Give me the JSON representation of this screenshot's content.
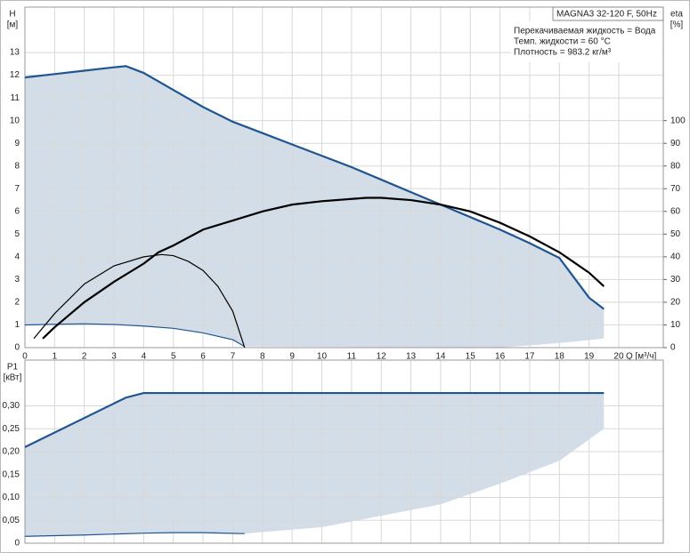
{
  "chart_data": [
    {
      "type": "line",
      "ylabel": "H",
      "yunit": "[м]",
      "y2label": "eta",
      "y2unit": "[%]",
      "xlabel": "Q [м³/ч]",
      "info_title": "MAGNA3 32-120 F, 50Hz",
      "info_lines": [
        "Перекачиваемая жидкость = Вода",
        "Темп. жидкости = 60 °C",
        "Плотность = 983.2 кг/м³"
      ],
      "xlim": [
        0,
        21.5
      ],
      "xticks": [
        0,
        1,
        2,
        3,
        4,
        5,
        6,
        7,
        8,
        9,
        10,
        11,
        12,
        13,
        14,
        15,
        16,
        17,
        18,
        19,
        20
      ],
      "ylim": [
        0,
        15
      ],
      "yticks": [
        0,
        1,
        2,
        3,
        4,
        5,
        6,
        7,
        8,
        9,
        10,
        11,
        12,
        13
      ],
      "y2lim": [
        0,
        150
      ],
      "y2ticks": [
        0,
        10,
        20,
        30,
        40,
        50,
        60,
        70,
        80,
        90,
        100
      ],
      "grid": true,
      "show_xtick_labels": true,
      "areas": [
        {
          "color": "#d3dde8",
          "x": [
            0,
            1,
            2,
            3,
            3.4,
            4,
            5,
            6,
            7,
            8,
            9,
            10,
            11,
            12,
            13,
            14,
            15,
            16,
            17,
            18,
            19,
            19.5,
            19.5,
            18,
            16,
            7.4,
            7,
            6,
            5,
            4,
            2,
            0
          ],
          "values": [
            11.9,
            12.05,
            12.2,
            12.35,
            12.4,
            12.1,
            11.35,
            10.6,
            9.95,
            9.45,
            8.95,
            8.45,
            7.95,
            7.4,
            6.85,
            6.3,
            5.75,
            5.2,
            4.6,
            3.95,
            2.2,
            1.7,
            0.4,
            0.2,
            0,
            0.05,
            0.35,
            0.65,
            0.85,
            0.95,
            1.05,
            1.0
          ]
        }
      ],
      "series": [
        {
          "color": "#1f5591",
          "weight": "heavy",
          "axis": "y",
          "x": [
            0,
            1,
            2,
            3,
            3.4,
            4,
            5,
            6,
            7,
            8,
            9,
            10,
            11,
            12,
            13,
            14,
            15,
            16,
            17,
            18,
            19,
            19.5
          ],
          "values": [
            11.9,
            12.05,
            12.2,
            12.35,
            12.4,
            12.1,
            11.35,
            10.6,
            9.95,
            9.45,
            8.95,
            8.45,
            7.95,
            7.4,
            6.85,
            6.3,
            5.75,
            5.2,
            4.6,
            3.95,
            2.2,
            1.7
          ]
        },
        {
          "color": "#1f5591",
          "weight": "light",
          "axis": "y",
          "x": [
            0,
            1,
            2,
            3,
            4,
            5,
            6,
            7,
            7.4
          ],
          "values": [
            1.0,
            1.03,
            1.05,
            1.02,
            0.95,
            0.85,
            0.65,
            0.35,
            0.05
          ]
        },
        {
          "color": "#000000",
          "weight": "heavy",
          "axis": "y2",
          "x": [
            0.6,
            1,
            2,
            3,
            4,
            4.5,
            5,
            6,
            7,
            8,
            9,
            10,
            11,
            11.5,
            12,
            13,
            14,
            15,
            16,
            17,
            18,
            19,
            19.5
          ],
          "values": [
            4,
            9,
            20,
            29,
            37,
            42,
            45,
            52,
            56,
            60,
            63,
            64.5,
            65.5,
            66,
            66,
            65,
            63,
            60,
            55,
            49,
            42,
            33,
            27
          ]
        },
        {
          "color": "#000000",
          "weight": "light",
          "axis": "y2",
          "x": [
            0.3,
            1,
            2,
            3,
            4,
            4.6,
            5,
            5.5,
            6,
            6.5,
            7,
            7.4
          ],
          "values": [
            4,
            15,
            28,
            36,
            40,
            41,
            40.5,
            38,
            34,
            27,
            16,
            0
          ]
        }
      ]
    },
    {
      "type": "line",
      "ylabel": "P1",
      "yunit": "[кВт]",
      "xlim": [
        0,
        21.5
      ],
      "xticks": [
        0,
        1,
        2,
        3,
        4,
        5,
        6,
        7,
        8,
        9,
        10,
        11,
        12,
        13,
        14,
        15,
        16,
        17,
        18,
        19,
        20
      ],
      "ylim": [
        0,
        0.4
      ],
      "yticks": [
        0,
        {
          "value": 0.05,
          "label": "0,05"
        },
        {
          "value": 0.1,
          "label": "0,10"
        },
        {
          "value": 0.15,
          "label": "0,15"
        },
        {
          "value": 0.2,
          "label": "0,20"
        },
        {
          "value": 0.25,
          "label": "0,25"
        },
        {
          "value": 0.3,
          "label": "0,30"
        }
      ],
      "grid": true,
      "show_xtick_labels": false,
      "areas": [
        {
          "color": "#d3dde8",
          "x": [
            0,
            3.4,
            4,
            19.5,
            19.5,
            18,
            16,
            14,
            12,
            10,
            7.4,
            6,
            5,
            4,
            2,
            0
          ],
          "values": [
            0.21,
            0.318,
            0.328,
            0.328,
            0.25,
            0.18,
            0.13,
            0.085,
            0.06,
            0.035,
            0.021,
            0.023,
            0.023,
            0.022,
            0.018,
            0.015
          ]
        }
      ],
      "series": [
        {
          "color": "#1f5591",
          "weight": "heavy",
          "axis": "y",
          "x": [
            0,
            3.4,
            4,
            19.5
          ],
          "values": [
            0.21,
            0.318,
            0.328,
            0.328
          ]
        },
        {
          "color": "#1f5591",
          "weight": "light",
          "axis": "y",
          "x": [
            0,
            2,
            4,
            5,
            6,
            7.4
          ],
          "values": [
            0.015,
            0.018,
            0.022,
            0.023,
            0.023,
            0.021
          ]
        }
      ]
    }
  ]
}
